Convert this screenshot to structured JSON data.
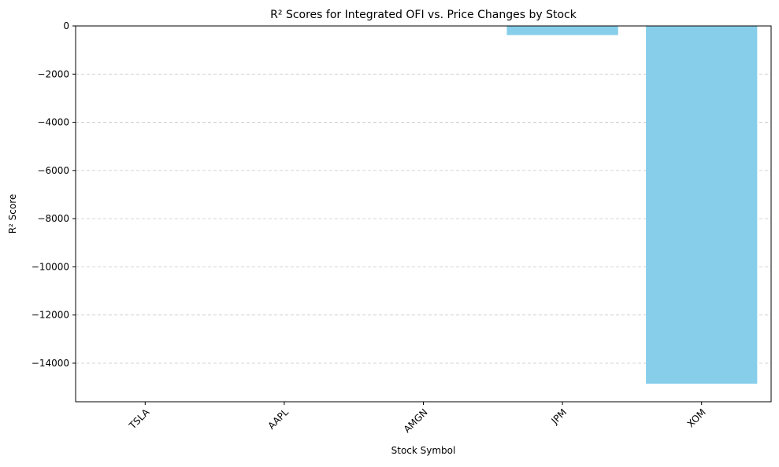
{
  "chart_data": {
    "type": "bar",
    "title": "R² Scores for Integrated OFI vs. Price Changes by Stock",
    "xlabel": "Stock Symbol",
    "ylabel": "R² Score",
    "categories": [
      "TSLA",
      "AAPL",
      "AMGN",
      "JPM",
      "XOM"
    ],
    "values": [
      -2,
      -1,
      -3,
      -380,
      -14850
    ],
    "ylim": [
      -15600,
      0
    ],
    "yticks": [
      0,
      -2000,
      -4000,
      -6000,
      -8000,
      -10000,
      -12000,
      -14000
    ],
    "ytick_labels": [
      "0",
      "−2000",
      "−4000",
      "−6000",
      "−8000",
      "−10000",
      "−12000",
      "−14000"
    ],
    "grid": "y-dashed",
    "legend": "none",
    "x_tick_rotation": 45,
    "bar_color": "#87ceeb"
  }
}
